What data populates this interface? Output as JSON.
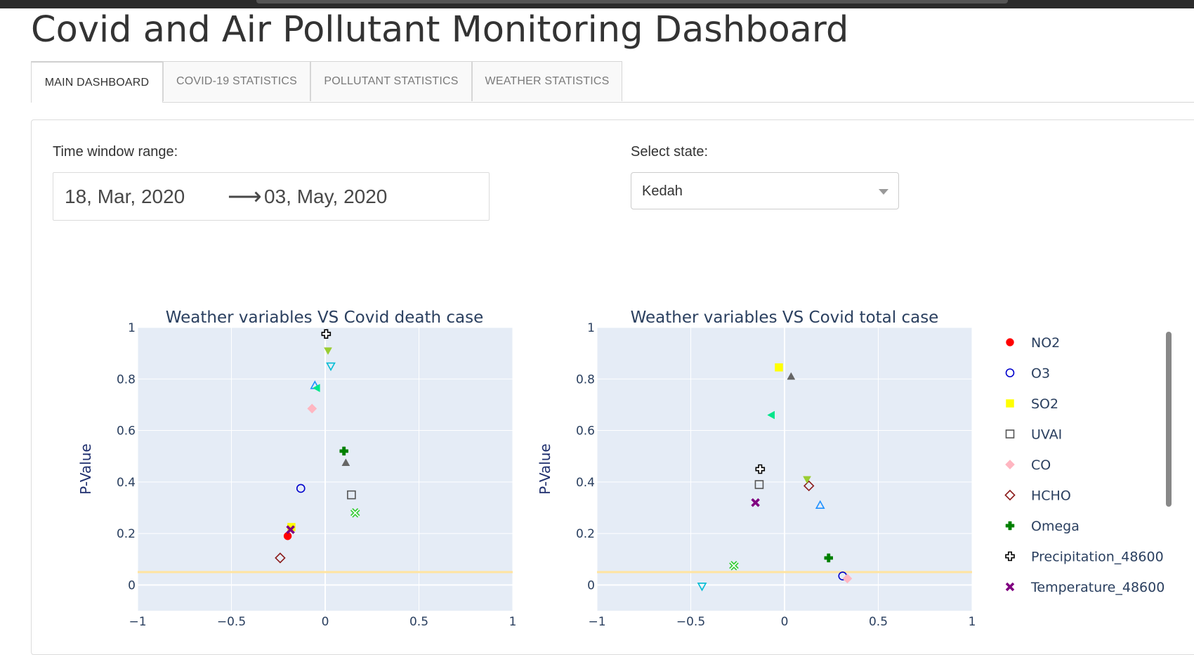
{
  "page": {
    "title": "Covid and Air Pollutant Monitoring Dashboard"
  },
  "tabs": [
    {
      "label": "MAIN DASHBOARD",
      "active": true
    },
    {
      "label": "COVID-19 STATISTICS",
      "active": false
    },
    {
      "label": "POLLUTANT STATISTICS",
      "active": false
    },
    {
      "label": "WEATHER STATISTICS",
      "active": false
    }
  ],
  "controls": {
    "time_window_label": "Time window range:",
    "start_date": "18, Mar, 2020",
    "end_date": "03, May, 2020",
    "arrow_glyph": "⟶",
    "state_label": "Select state:",
    "state_value": "Kedah"
  },
  "chart_data": [
    {
      "type": "scatter",
      "title": "Weather variables VS Covid death case",
      "xlabel": "",
      "ylabel": "P-Value",
      "xlim": [
        -1,
        1
      ],
      "ylim": [
        -0.1,
        1.0
      ],
      "xticks": [
        -1,
        -0.5,
        0,
        0.5,
        1
      ],
      "xtick_labels": [
        "−1",
        "−0.5",
        "0",
        "0.5",
        "1"
      ],
      "yticks": [
        0,
        0.2,
        0.4,
        0.6,
        0.8,
        1
      ],
      "ytick_labels": [
        "0",
        "0.2",
        "0.4",
        "0.6",
        "0.8",
        "1"
      ],
      "threshold_line": 0.05,
      "points": [
        {
          "series": "NO2",
          "x": -0.2,
          "y": 0.19
        },
        {
          "series": "O3",
          "x": -0.13,
          "y": 0.375
        },
        {
          "series": "SO2",
          "x": -0.18,
          "y": 0.225
        },
        {
          "series": "UVAI",
          "x": 0.14,
          "y": 0.35
        },
        {
          "series": "CO",
          "x": -0.07,
          "y": 0.685
        },
        {
          "series": "HCHO",
          "x": -0.24,
          "y": 0.105
        },
        {
          "series": "Omega",
          "x": 0.1,
          "y": 0.52
        },
        {
          "series": "Precipitation_48600",
          "x": 0.005,
          "y": 0.975
        },
        {
          "series": "Temperature_48600",
          "x": -0.185,
          "y": 0.215
        },
        {
          "series": "S1",
          "x": 0.16,
          "y": 0.28
        },
        {
          "series": "S2",
          "x": 0.11,
          "y": 0.475
        },
        {
          "series": "S3",
          "x": 0.015,
          "y": 0.91
        },
        {
          "series": "S4",
          "x": 0.03,
          "y": 0.85
        },
        {
          "series": "S5",
          "x": -0.055,
          "y": 0.775
        },
        {
          "series": "S6",
          "x": -0.045,
          "y": 0.765
        }
      ]
    },
    {
      "type": "scatter",
      "title": "Weather variables VS Covid total case",
      "xlabel": "",
      "ylabel": "P-Value",
      "xlim": [
        -1,
        1
      ],
      "ylim": [
        -0.1,
        1.0
      ],
      "xticks": [
        -1,
        -0.5,
        0,
        0.5,
        1
      ],
      "xtick_labels": [
        "−1",
        "−0.5",
        "0",
        "0.5",
        "1"
      ],
      "yticks": [
        0,
        0.2,
        0.4,
        0.6,
        0.8,
        1
      ],
      "ytick_labels": [
        "0",
        "0.2",
        "0.4",
        "0.6",
        "0.8",
        "1"
      ],
      "threshold_line": 0.05,
      "points": [
        {
          "series": "O3",
          "x": 0.31,
          "y": 0.035
        },
        {
          "series": "SO2",
          "x": -0.03,
          "y": 0.845
        },
        {
          "series": "UVAI",
          "x": -0.135,
          "y": 0.39
        },
        {
          "series": "CO",
          "x": 0.335,
          "y": 0.025
        },
        {
          "series": "HCHO",
          "x": 0.13,
          "y": 0.385
        },
        {
          "series": "Omega",
          "x": 0.235,
          "y": 0.105
        },
        {
          "series": "Precipitation_48600",
          "x": -0.13,
          "y": 0.45
        },
        {
          "series": "Temperature_48600",
          "x": -0.155,
          "y": 0.32
        },
        {
          "series": "S1",
          "x": -0.27,
          "y": 0.075
        },
        {
          "series": "S2",
          "x": 0.035,
          "y": 0.81
        },
        {
          "series": "S3",
          "x": 0.12,
          "y": 0.41
        },
        {
          "series": "S4",
          "x": -0.44,
          "y": -0.005
        },
        {
          "series": "S5",
          "x": 0.19,
          "y": 0.31
        },
        {
          "series": "S6",
          "x": -0.07,
          "y": 0.66
        }
      ]
    }
  ],
  "legend": {
    "placement": "right",
    "items": [
      {
        "label": "NO2",
        "symbol": "circle",
        "color": "#ff0000"
      },
      {
        "label": "O3",
        "symbol": "circle-open",
        "color": "#0000cc"
      },
      {
        "label": "SO2",
        "symbol": "square",
        "color": "#ffff00"
      },
      {
        "label": "UVAI",
        "symbol": "square-open",
        "color": "#555555"
      },
      {
        "label": "CO",
        "symbol": "diamond",
        "color": "#ffb6c1"
      },
      {
        "label": "HCHO",
        "symbol": "diamond-open",
        "color": "#8b1a1a"
      },
      {
        "label": "Omega",
        "symbol": "cross",
        "color": "#008000"
      },
      {
        "label": "Precipitation_48600",
        "symbol": "cross-open",
        "color": "#000000"
      },
      {
        "label": "Temperature_48600",
        "symbol": "x",
        "color": "#800080"
      }
    ]
  },
  "hidden_series_styles": {
    "S1": {
      "symbol": "x-open",
      "color": "#33cc33"
    },
    "S2": {
      "symbol": "triangle-up",
      "color": "#666666"
    },
    "S3": {
      "symbol": "triangle-down",
      "color": "#9acd32"
    },
    "S4": {
      "symbol": "triangle-down-open",
      "color": "#00bcd4"
    },
    "S5": {
      "symbol": "triangle-up-open",
      "color": "#1e90ff"
    },
    "S6": {
      "symbol": "triangle-left",
      "color": "#00e58a"
    }
  },
  "colors": {
    "plot_bg": "#e5ecf6",
    "grid": "#ffffff",
    "threshold": "#ffe4a0",
    "text": "#2a3f5f",
    "axis_label": "#1f2f6e"
  }
}
